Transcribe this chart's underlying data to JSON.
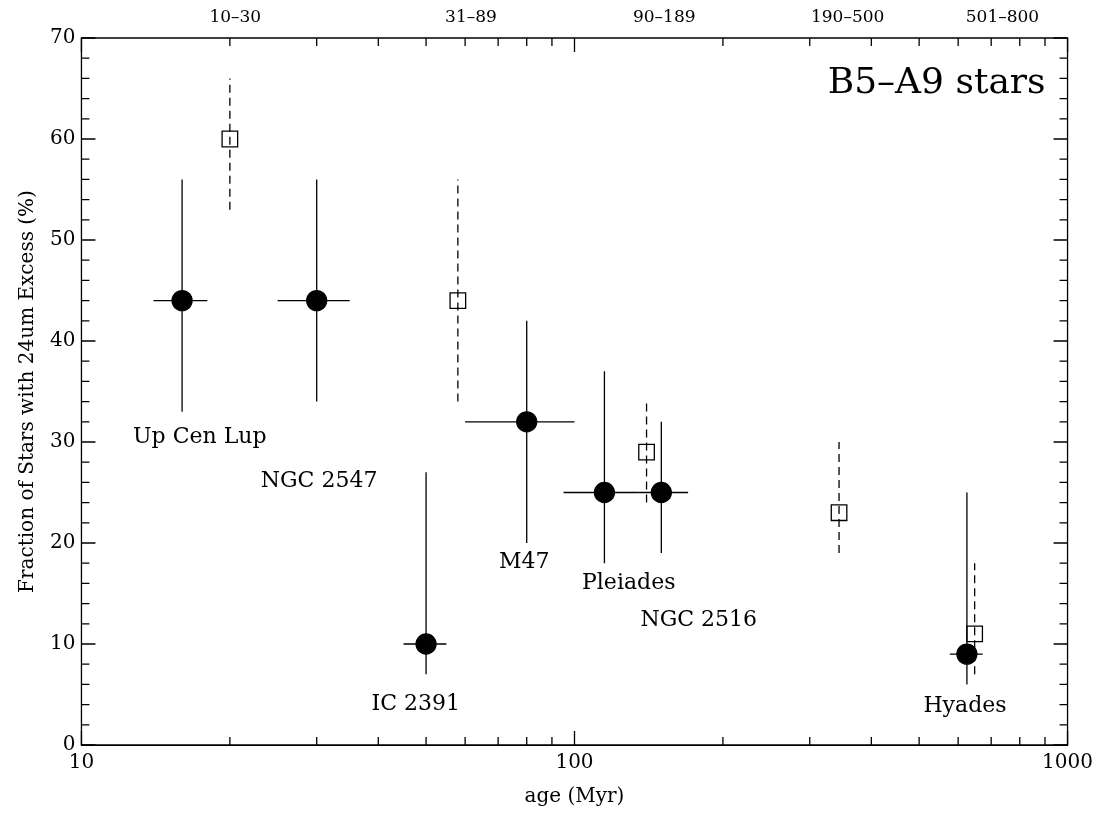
{
  "chart_data": {
    "type": "scatter",
    "title": "B5–A9 stars",
    "xlabel": "age (Myr)",
    "ylabel": "Fraction of Stars with 24um Excess (%)",
    "log": "x",
    "xlim": [
      10,
      1000
    ],
    "ylim": [
      0,
      70
    ],
    "xticks": [
      10,
      {
        "value": 20,
        "label": null
      },
      {
        "value": 30,
        "label": null
      },
      {
        "value": 40,
        "label": null
      },
      {
        "value": 50,
        "label": null
      },
      {
        "value": 60,
        "label": null
      },
      {
        "value": 70,
        "label": null
      },
      {
        "value": 80,
        "label": null
      },
      {
        "value": 90,
        "label": null
      },
      100,
      {
        "value": 200,
        "label": null
      },
      {
        "value": 300,
        "label": null
      },
      {
        "value": 400,
        "label": null
      },
      {
        "value": 500,
        "label": null
      },
      {
        "value": 600,
        "label": null
      },
      {
        "value": 700,
        "label": null
      },
      {
        "value": 800,
        "label": null
      },
      {
        "value": 900,
        "label": null
      },
      1000
    ],
    "yticks": [
      0,
      {
        "value": 2,
        "label": null
      },
      {
        "value": 4,
        "label": null
      },
      {
        "value": 6,
        "label": null
      },
      {
        "value": 8,
        "label": null
      },
      10,
      {
        "value": 12,
        "label": null
      },
      {
        "value": 14,
        "label": null
      },
      {
        "value": 16,
        "label": null
      },
      {
        "value": 18,
        "label": null
      },
      20,
      {
        "value": 22,
        "label": null
      },
      {
        "value": 24,
        "label": null
      },
      {
        "value": 26,
        "label": null
      },
      {
        "value": 28,
        "label": null
      },
      30,
      {
        "value": 32,
        "label": null
      },
      {
        "value": 34,
        "label": null
      },
      {
        "value": 36,
        "label": null
      },
      {
        "value": 38,
        "label": null
      },
      40,
      {
        "value": 42,
        "label": null
      },
      {
        "value": 44,
        "label": null
      },
      {
        "value": 46,
        "label": null
      },
      {
        "value": 48,
        "label": null
      },
      50,
      {
        "value": 52,
        "label": null
      },
      {
        "value": 54,
        "label": null
      },
      {
        "value": 56,
        "label": null
      },
      {
        "value": 58,
        "label": null
      },
      60,
      {
        "value": 62,
        "label": null
      },
      {
        "value": 64,
        "label": null
      },
      {
        "value": 66,
        "label": null
      },
      {
        "value": 68,
        "label": null
      },
      70
    ],
    "series": [
      {
        "color": "#000000",
        "marker": "circle",
        "line_style": "solid",
        "x": [
          16,
          30,
          50,
          80,
          115,
          150,
          625
        ],
        "values": [
          44,
          44,
          10,
          32,
          25,
          25,
          9
        ],
        "errors": [
          [
            33,
            56
          ],
          [
            34,
            56
          ],
          [
            7,
            27
          ],
          [
            20,
            42
          ],
          [
            18,
            37
          ],
          [
            19,
            32
          ],
          [
            6,
            25
          ]
        ],
        "xerrors": [
          [
            14,
            18
          ],
          [
            25,
            35
          ],
          [
            45,
            55
          ],
          [
            60,
            100
          ],
          [
            95,
            135
          ],
          [
            135,
            170
          ],
          [
            577,
            673
          ]
        ]
      },
      {
        "color": "#000000",
        "marker": "square",
        "line_style": "dashed",
        "x": [
          20,
          58,
          140,
          344,
          648
        ],
        "values": [
          60,
          44,
          29,
          23,
          11
        ],
        "errors": [
          [
            53,
            66
          ],
          [
            34,
            56
          ],
          [
            24,
            34
          ],
          [
            19,
            30
          ],
          [
            7,
            18
          ]
        ]
      }
    ],
    "annotations": [
      "10–30",
      "31–89",
      "90–189",
      "190–500",
      "501–800",
      "Up Cen Lup",
      "NGC 2547",
      "IC 2391",
      "M47",
      "Pleiades",
      "NGC 2516",
      "Hyades"
    ]
  }
}
